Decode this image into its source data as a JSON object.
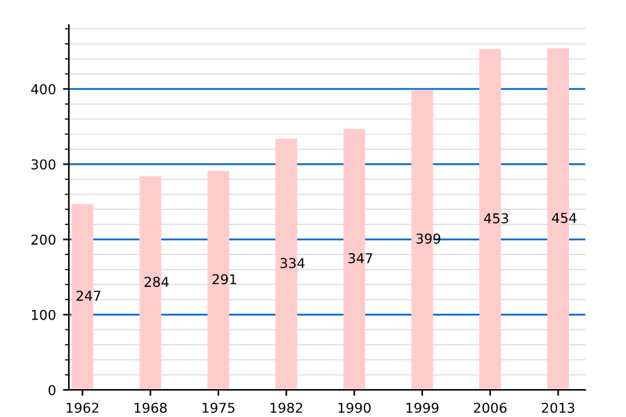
{
  "chart_data": {
    "type": "bar",
    "categories": [
      "1962",
      "1968",
      "1975",
      "1982",
      "1990",
      "1999",
      "2006",
      "2013"
    ],
    "values": [
      247,
      284,
      291,
      334,
      347,
      399,
      453,
      454
    ],
    "color": "#ffcccc",
    "ylim": [
      0,
      485
    ],
    "yticks": [
      0,
      100,
      200,
      300,
      400
    ],
    "grid": "y",
    "data_labels": true
  }
}
